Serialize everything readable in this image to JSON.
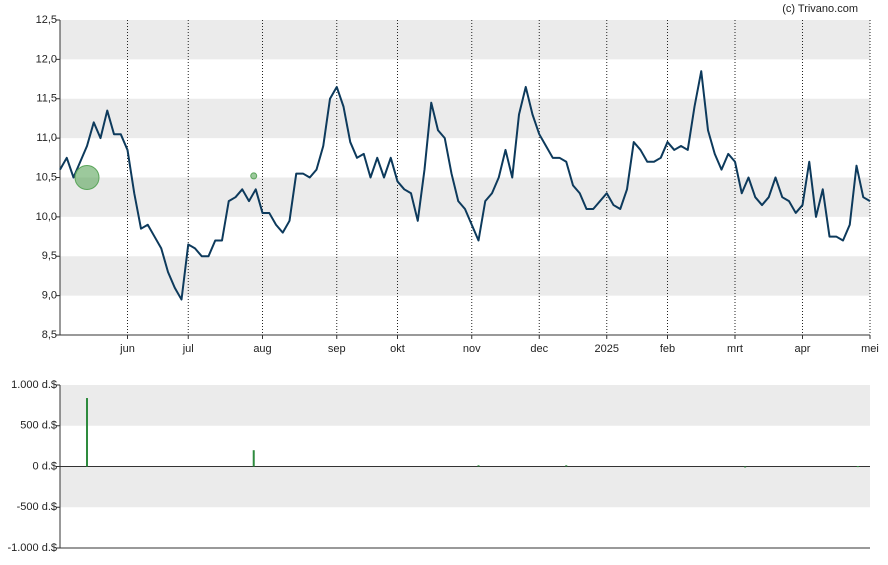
{
  "chart_data": [
    {
      "type": "line",
      "credit": "(c) Trivano.com",
      "color": "#0d3a5c",
      "xlim": [
        0,
        120
      ],
      "xticks": [
        {
          "value": 10,
          "label": "jun"
        },
        {
          "value": 19,
          "label": "jul"
        },
        {
          "value": 30,
          "label": "aug"
        },
        {
          "value": 41,
          "label": "sep"
        },
        {
          "value": 50,
          "label": "okt"
        },
        {
          "value": 61,
          "label": "nov"
        },
        {
          "value": 71,
          "label": "dec"
        },
        {
          "value": 81,
          "label": "2025"
        },
        {
          "value": 90,
          "label": "feb"
        },
        {
          "value": 100,
          "label": "mrt"
        },
        {
          "value": 110,
          "label": "apr"
        },
        {
          "value": 120,
          "label": "mei"
        }
      ],
      "ylim": [
        8.5,
        12.5
      ],
      "yticks": [
        {
          "value": 8.5,
          "label": "8,5"
        },
        {
          "value": 9,
          "label": "9,0"
        },
        {
          "value": 9.5,
          "label": "9,5"
        },
        {
          "value": 10,
          "label": "10,0"
        },
        {
          "value": 10.5,
          "label": "10,5"
        },
        {
          "value": 11,
          "label": "11,0"
        },
        {
          "value": 11.5,
          "label": "11,5"
        },
        {
          "value": 12,
          "label": "12,0"
        },
        {
          "value": 12.5,
          "label": "12,5"
        }
      ],
      "values": [
        10.6,
        10.75,
        10.5,
        10.7,
        10.9,
        11.2,
        11.0,
        11.35,
        11.05,
        11.05,
        10.85,
        10.3,
        9.85,
        9.9,
        9.75,
        9.6,
        9.3,
        9.1,
        8.95,
        9.65,
        9.6,
        9.5,
        9.5,
        9.7,
        9.7,
        10.2,
        10.25,
        10.35,
        10.2,
        10.35,
        10.05,
        10.05,
        9.9,
        9.8,
        9.95,
        10.55,
        10.55,
        10.5,
        10.6,
        10.9,
        11.5,
        11.65,
        11.4,
        10.95,
        10.75,
        10.8,
        10.5,
        10.75,
        10.5,
        10.75,
        10.45,
        10.35,
        10.3,
        9.95,
        10.6,
        11.45,
        11.1,
        11.0,
        10.55,
        10.2,
        10.1,
        9.9,
        9.7,
        10.2,
        10.3,
        10.5,
        10.85,
        10.5,
        11.3,
        11.65,
        11.3,
        11.05,
        10.9,
        10.75,
        10.75,
        10.7,
        10.4,
        10.3,
        10.1,
        10.1,
        10.2,
        10.3,
        10.15,
        10.1,
        10.35,
        10.95,
        10.85,
        10.7,
        10.7,
        10.75,
        10.95,
        10.85,
        10.9,
        10.85,
        11.4,
        11.85,
        11.1,
        10.8,
        10.6,
        10.8,
        10.7,
        10.3,
        10.5,
        10.25,
        10.15,
        10.25,
        10.5,
        10.25,
        10.2,
        10.05,
        10.15,
        10.7,
        10.0,
        10.35,
        9.75,
        9.75,
        9.7,
        9.9,
        10.65,
        10.25,
        10.2
      ],
      "markers": {
        "color": "#5aa55a",
        "x": [
          4,
          28.7
        ],
        "values": [
          10.5,
          10.52
        ]
      }
    },
    {
      "type": "bar",
      "color": "#2e8b3e",
      "xlim": [
        0,
        120
      ],
      "ylim": [
        -1000,
        1000
      ],
      "yticks": [
        {
          "value": -1000,
          "label": "-1.000 d.$"
        },
        {
          "value": -500,
          "label": "-500 d.$"
        },
        {
          "value": 0,
          "label": "0 d.$"
        },
        {
          "value": 500,
          "label": "500 d.$"
        },
        {
          "value": 1000,
          "label": "1.000 d.$"
        }
      ],
      "x": [
        4,
        28.7,
        62,
        75,
        101.5,
        118.2
      ],
      "values": [
        840,
        200,
        15,
        15,
        -5,
        5
      ]
    }
  ]
}
